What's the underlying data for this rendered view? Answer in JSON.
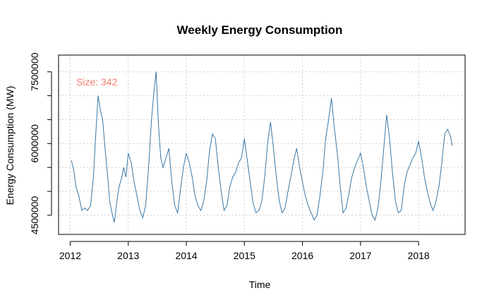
{
  "chart_data": {
    "type": "line",
    "title": "Weekly Energy Consumption",
    "xlabel": "Time",
    "ylabel": "Energy Consumption (MW)",
    "xlim": [
      2011.8,
      2018.8
    ],
    "ylim": [
      4100000,
      7850000
    ],
    "x_ticks": [
      2012,
      2013,
      2014,
      2015,
      2016,
      2017,
      2018
    ],
    "x_tick_labels": [
      "2012",
      "2013",
      "2014",
      "2015",
      "2016",
      "2017",
      "2018"
    ],
    "y_ticks": [
      4500000,
      6000000,
      7500000
    ],
    "y_tick_labels": [
      "4500000",
      "6000000",
      "7500000"
    ],
    "y_minor_ticks": [
      5000000,
      5500000,
      6500000,
      7000000
    ],
    "grid": true,
    "annotation": {
      "text": "Size: 342",
      "color": "#f08070"
    },
    "series_color": "#3b78a6",
    "series": [
      {
        "x": [
          2012.02,
          2012.06,
          2012.1,
          2012.15,
          2012.2,
          2012.25,
          2012.3,
          2012.35,
          2012.4,
          2012.44,
          2012.48,
          2012.52,
          2012.56,
          2012.6,
          2012.64,
          2012.68,
          2012.72,
          2012.76,
          2012.8,
          2012.84,
          2012.88,
          2012.92,
          2012.96,
          2013.0,
          2013.05,
          2013.1,
          2013.15,
          2013.2,
          2013.25,
          2013.3,
          2013.35,
          2013.4,
          2013.44,
          2013.48,
          2013.52,
          2013.56,
          2013.6,
          2013.65,
          2013.7,
          2013.75,
          2013.8,
          2013.85,
          2013.9,
          2013.95,
          2014.0,
          2014.05,
          2014.1,
          2014.15,
          2014.2,
          2014.25,
          2014.3,
          2014.35,
          2014.4,
          2014.45,
          2014.5,
          2014.55,
          2014.6,
          2014.65,
          2014.7,
          2014.75,
          2014.8,
          2014.85,
          2014.9,
          2014.95,
          2015.0,
          2015.05,
          2015.1,
          2015.15,
          2015.2,
          2015.25,
          2015.3,
          2015.35,
          2015.4,
          2015.45,
          2015.5,
          2015.55,
          2015.6,
          2015.65,
          2015.7,
          2015.75,
          2015.8,
          2015.85,
          2015.9,
          2015.95,
          2016.0,
          2016.05,
          2016.1,
          2016.15,
          2016.2,
          2016.25,
          2016.3,
          2016.35,
          2016.4,
          2016.45,
          2016.5,
          2016.55,
          2016.6,
          2016.65,
          2016.7,
          2016.75,
          2016.8,
          2016.85,
          2016.9,
          2016.95,
          2017.0,
          2017.05,
          2017.1,
          2017.15,
          2017.2,
          2017.25,
          2017.3,
          2017.35,
          2017.4,
          2017.45,
          2017.5,
          2017.55,
          2017.6,
          2017.65,
          2017.7,
          2017.75,
          2017.8,
          2017.85,
          2017.9,
          2017.95,
          2018.0,
          2018.05,
          2018.1,
          2018.15,
          2018.2,
          2018.25,
          2018.3,
          2018.35,
          2018.4,
          2018.45,
          2018.5,
          2018.55,
          2018.58
        ],
        "y": [
          5650000,
          5450000,
          5100000,
          4900000,
          4600000,
          4650000,
          4600000,
          4700000,
          5300000,
          6200000,
          7000000,
          6700000,
          6500000,
          5900000,
          5400000,
          4800000,
          4550000,
          4350000,
          4750000,
          5100000,
          5250000,
          5500000,
          5300000,
          5800000,
          5600000,
          5200000,
          4900000,
          4600000,
          4450000,
          4700000,
          5500000,
          6500000,
          7050000,
          7500000,
          6400000,
          5700000,
          5500000,
          5700000,
          5900000,
          5200000,
          4700000,
          4550000,
          5050000,
          5500000,
          5800000,
          5600000,
          5300000,
          4900000,
          4700000,
          4600000,
          4800000,
          5200000,
          5850000,
          6200000,
          6100000,
          5500000,
          5000000,
          4600000,
          4700000,
          5100000,
          5300000,
          5400000,
          5600000,
          5700000,
          6100000,
          5650000,
          5200000,
          4750000,
          4550000,
          4600000,
          4800000,
          5300000,
          6000000,
          6450000,
          5900000,
          5300000,
          4800000,
          4550000,
          4650000,
          5000000,
          5300000,
          5650000,
          5900000,
          5500000,
          5200000,
          4900000,
          4700000,
          4550000,
          4400000,
          4500000,
          4900000,
          5400000,
          6100000,
          6500000,
          6950000,
          6300000,
          5800000,
          5100000,
          4550000,
          4650000,
          4950000,
          5300000,
          5500000,
          5650000,
          5800000,
          5500000,
          5100000,
          4800000,
          4500000,
          4400000,
          4650000,
          5200000,
          5900000,
          6600000,
          6100000,
          5400000,
          4800000,
          4550000,
          4600000,
          5100000,
          5400000,
          5550000,
          5700000,
          5800000,
          6050000,
          5700000,
          5300000,
          5000000,
          4750000,
          4600000,
          4800000,
          5100000,
          5600000,
          6200000,
          6300000,
          6150000,
          5950000
        ]
      }
    ]
  }
}
